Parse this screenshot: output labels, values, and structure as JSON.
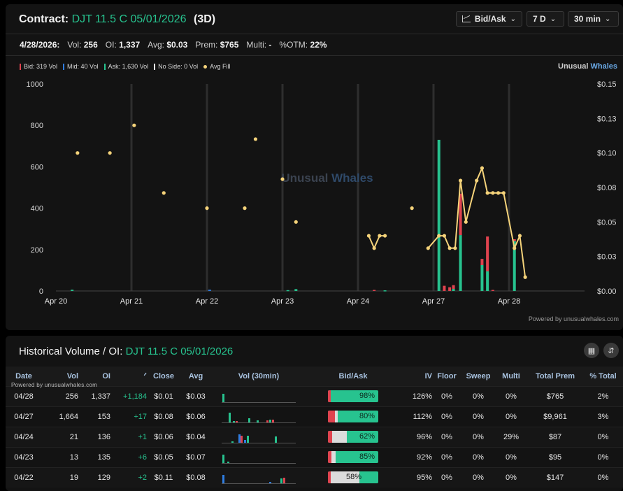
{
  "header": {
    "contract_label": "Contract:",
    "contract_name": "DJT 11.5 C 05/01/2026",
    "range_label": "(3D)",
    "dropdowns": {
      "bid_ask": "Bid/Ask",
      "range": "7 D",
      "interval": "30 min"
    }
  },
  "stats": {
    "date": "4/28/2026:",
    "vol_label": "Vol:",
    "vol": "256",
    "oi_label": "OI:",
    "oi": "1,337",
    "avg_label": "Avg:",
    "avg": "$0.03",
    "prem_label": "Prem:",
    "prem": "$765",
    "multi_label": "Multi:",
    "multi": "-",
    "otm_label": "%OTM:",
    "otm": "22%"
  },
  "legend": {
    "bid": "Bid: 319 Vol",
    "mid": "Mid: 40 Vol",
    "ask": "Ask: 1,630 Vol",
    "noside": "No Side: 0 Vol",
    "avgfill": "Avg Fill"
  },
  "brand": {
    "part1": "Unusual",
    "part2": "Whales"
  },
  "watermark": {
    "part1": "Unusual",
    "part2": "Whales"
  },
  "powered_top": "Powered by unusualwhales.com",
  "colors": {
    "bid": "#e0434f",
    "mid": "#2f7de1",
    "ask": "#27c38f",
    "avg_fill": "#f5d37a",
    "noside": "#ffffff"
  },
  "chart_data": {
    "type": "bar",
    "x_labels": [
      "Apr 20",
      "Apr 21",
      "Apr 22",
      "Apr 23",
      "Apr 24",
      "Apr 27",
      "Apr 28"
    ],
    "y_left_ticks": [
      "1000",
      "800",
      "600",
      "400",
      "200",
      "0"
    ],
    "y_left_range": [
      0,
      1000
    ],
    "y_right_ticks": [
      "$0.15",
      "$0.13",
      "$0.10",
      "$0.08",
      "$0.05",
      "$0.03",
      "$0.00"
    ],
    "y_right_range": [
      0,
      0.15
    ],
    "session_slots": 14,
    "volume_bars": [
      {
        "day": 0,
        "slot": 3,
        "ask": 6,
        "bid": 0,
        "mid": 0
      },
      {
        "day": 2,
        "slot": 0.5,
        "ask": 0,
        "bid": 0,
        "mid": 6
      },
      {
        "day": 3,
        "slot": 1,
        "ask": 4,
        "bid": 0,
        "mid": 0
      },
      {
        "day": 3,
        "slot": 2.5,
        "ask": 9,
        "bid": 0,
        "mid": 0
      },
      {
        "day": 4,
        "slot": 3,
        "ask": 0,
        "bid": 5,
        "mid": 0
      },
      {
        "day": 4,
        "slot": 5,
        "ask": 3,
        "bid": 0,
        "mid": 0
      },
      {
        "day": 5,
        "slot": 1,
        "ask": 730,
        "bid": 0,
        "mid": 0
      },
      {
        "day": 5,
        "slot": 2,
        "ask": 0,
        "bid": 25,
        "mid": 0
      },
      {
        "day": 5,
        "slot": 3,
        "ask": 0,
        "bid": 18,
        "mid": 0
      },
      {
        "day": 5,
        "slot": 3.7,
        "ask": 10,
        "bid": 18,
        "mid": 0
      },
      {
        "day": 5,
        "slot": 5,
        "ask": 270,
        "bid": 200,
        "mid": 0
      },
      {
        "day": 5,
        "slot": 9,
        "ask": 125,
        "bid": 30,
        "mid": 0
      },
      {
        "day": 5,
        "slot": 10,
        "ask": 95,
        "bid": 168,
        "mid": 0
      },
      {
        "day": 5,
        "slot": 11,
        "ask": 0,
        "bid": 5,
        "mid": 0
      },
      {
        "day": 6,
        "slot": 1,
        "ask": 240,
        "bid": 10,
        "mid": 0
      }
    ],
    "avg_fill_points": [
      {
        "day": 0,
        "slot": 4,
        "y": 0.1,
        "connected": false
      },
      {
        "day": 0,
        "slot": 10,
        "y": 0.1,
        "connected": false
      },
      {
        "day": 1,
        "slot": 0.5,
        "y": 0.12,
        "connected": false
      },
      {
        "day": 1,
        "slot": 6,
        "y": 0.071,
        "connected": false
      },
      {
        "day": 2,
        "slot": 0,
        "y": 0.06,
        "connected": false
      },
      {
        "day": 2,
        "slot": 7,
        "y": 0.06,
        "connected": false
      },
      {
        "day": 2,
        "slot": 9,
        "y": 0.11,
        "connected": false
      },
      {
        "day": 3,
        "slot": 0,
        "y": 0.081,
        "connected": false
      },
      {
        "day": 3,
        "slot": 2.5,
        "y": 0.05,
        "connected": false
      },
      {
        "day": 4,
        "slot": 2,
        "y": 0.04,
        "group": 1
      },
      {
        "day": 4,
        "slot": 3,
        "y": 0.031,
        "group": 1
      },
      {
        "day": 4,
        "slot": 4,
        "y": 0.04,
        "group": 1
      },
      {
        "day": 4,
        "slot": 5,
        "y": 0.04,
        "group": 1
      },
      {
        "day": 4,
        "slot": 10,
        "y": 0.06,
        "connected": false
      },
      {
        "day": 4,
        "slot": 13,
        "y": 0.031,
        "group": 2
      },
      {
        "day": 5,
        "slot": 1,
        "y": 0.04,
        "group": 2
      },
      {
        "day": 5,
        "slot": 2,
        "y": 0.04,
        "group": 2
      },
      {
        "day": 5,
        "slot": 3,
        "y": 0.031,
        "group": 2
      },
      {
        "day": 5,
        "slot": 4,
        "y": 0.031,
        "group": 2
      },
      {
        "day": 5,
        "slot": 5,
        "y": 0.08,
        "group": 2
      },
      {
        "day": 5,
        "slot": 6,
        "y": 0.05,
        "group": 2
      },
      {
        "day": 5,
        "slot": 8,
        "y": 0.08,
        "group": 2
      },
      {
        "day": 5,
        "slot": 9,
        "y": 0.089,
        "group": 2
      },
      {
        "day": 5,
        "slot": 10,
        "y": 0.071,
        "group": 2
      },
      {
        "day": 5,
        "slot": 11,
        "y": 0.071,
        "group": 2
      },
      {
        "day": 5,
        "slot": 12,
        "y": 0.071,
        "group": 2
      },
      {
        "day": 5,
        "slot": 13,
        "y": 0.071,
        "group": 2
      },
      {
        "day": 6,
        "slot": 1,
        "y": 0.031,
        "group": 2
      },
      {
        "day": 6,
        "slot": 2,
        "y": 0.04,
        "group": 2
      },
      {
        "day": 6,
        "slot": 3,
        "y": 0.01,
        "group": 2
      }
    ]
  },
  "history": {
    "title": "Historical Volume / OI:",
    "contract_name": "DJT 11.5 C 05/01/2026",
    "powered": "Powered by unusualwhales.com",
    "columns": [
      "Date",
      "Vol",
      "OI",
      "ᐟ",
      "Close",
      "Avg",
      "Vol (30min)",
      "Bid/Ask",
      "IV",
      "Floor",
      "Sweep",
      "Multi",
      "Total Prem",
      "% Total"
    ],
    "rows": [
      {
        "date": "04/28",
        "vol": "256",
        "oi": "1,337",
        "oi_change": "+1,184",
        "close": "$0.01",
        "avg": "$0.03",
        "bid": 0.05,
        "mid": 0,
        "ask_pct": "98%",
        "iv": "126%",
        "floor": "0%",
        "sweep": "0%",
        "multi": "0%",
        "total_prem": "$765",
        "pct_total": "2%",
        "spark": [
          {
            "x": 1,
            "h": 12,
            "c": "#27c38f"
          }
        ]
      },
      {
        "date": "04/27",
        "vol": "1,664",
        "oi": "153",
        "oi_change": "+17",
        "close": "$0.08",
        "avg": "$0.06",
        "bid": 0.14,
        "mid": 0.06,
        "ask_pct": "80%",
        "iv": "112%",
        "floor": "0%",
        "sweep": "0%",
        "multi": "0%",
        "total_prem": "$9,961",
        "pct_total": "3%",
        "spark": [
          {
            "x": 10,
            "h": 14,
            "c": "#27c38f"
          },
          {
            "x": 16,
            "h": 2,
            "c": "#27c38f"
          },
          {
            "x": 20,
            "h": 2,
            "c": "#e0434f"
          },
          {
            "x": 38,
            "h": 6,
            "c": "#27c38f"
          },
          {
            "x": 50,
            "h": 3,
            "c": "#27c38f"
          },
          {
            "x": 64,
            "h": 3,
            "c": "#e0434f"
          },
          {
            "x": 68,
            "h": 4,
            "c": "#27c38f"
          },
          {
            "x": 72,
            "h": 4,
            "c": "#e0434f"
          }
        ]
      },
      {
        "date": "04/24",
        "vol": "21",
        "oi": "136",
        "oi_change": "+1",
        "close": "$0.06",
        "avg": "$0.04",
        "bid": 0.09,
        "mid": 0.29,
        "ask_pct": "62%",
        "iv": "96%",
        "floor": "0%",
        "sweep": "0%",
        "multi": "29%",
        "total_prem": "$87",
        "pct_total": "0%",
        "spark": [
          {
            "x": 14,
            "h": 2,
            "c": "#27c38f"
          },
          {
            "x": 24,
            "h": 12,
            "c": "#2f7de1"
          },
          {
            "x": 27,
            "h": 10,
            "c": "#e0434f"
          },
          {
            "x": 32,
            "h": 4,
            "c": "#2f7de1"
          },
          {
            "x": 36,
            "h": 10,
            "c": "#27c38f"
          },
          {
            "x": 76,
            "h": 9,
            "c": "#27c38f"
          }
        ]
      },
      {
        "date": "04/23",
        "vol": "13",
        "oi": "135",
        "oi_change": "+6",
        "close": "$0.05",
        "avg": "$0.07",
        "bid": 0.07,
        "mid": 0.08,
        "ask_pct": "85%",
        "iv": "92%",
        "floor": "0%",
        "sweep": "0%",
        "multi": "0%",
        "total_prem": "$95",
        "pct_total": "0%",
        "spark": [
          {
            "x": 1,
            "h": 12,
            "c": "#27c38f"
          },
          {
            "x": 8,
            "h": 2,
            "c": "#27c38f"
          }
        ]
      },
      {
        "date": "04/22",
        "vol": "19",
        "oi": "129",
        "oi_change": "+2",
        "close": "$0.11",
        "avg": "$0.08",
        "bid": 0.05,
        "mid": 0.58,
        "ask_pct": "58%",
        "iv": "95%",
        "floor": "0%",
        "sweep": "0%",
        "multi": "0%",
        "total_prem": "$147",
        "pct_total": "0%",
        "spark": [
          {
            "x": 1,
            "h": 12,
            "c": "#2f7de1"
          },
          {
            "x": 68,
            "h": 2,
            "c": "#2f7de1"
          },
          {
            "x": 84,
            "h": 7,
            "c": "#27c38f"
          },
          {
            "x": 88,
            "h": 8,
            "c": "#e0434f"
          }
        ]
      }
    ]
  }
}
